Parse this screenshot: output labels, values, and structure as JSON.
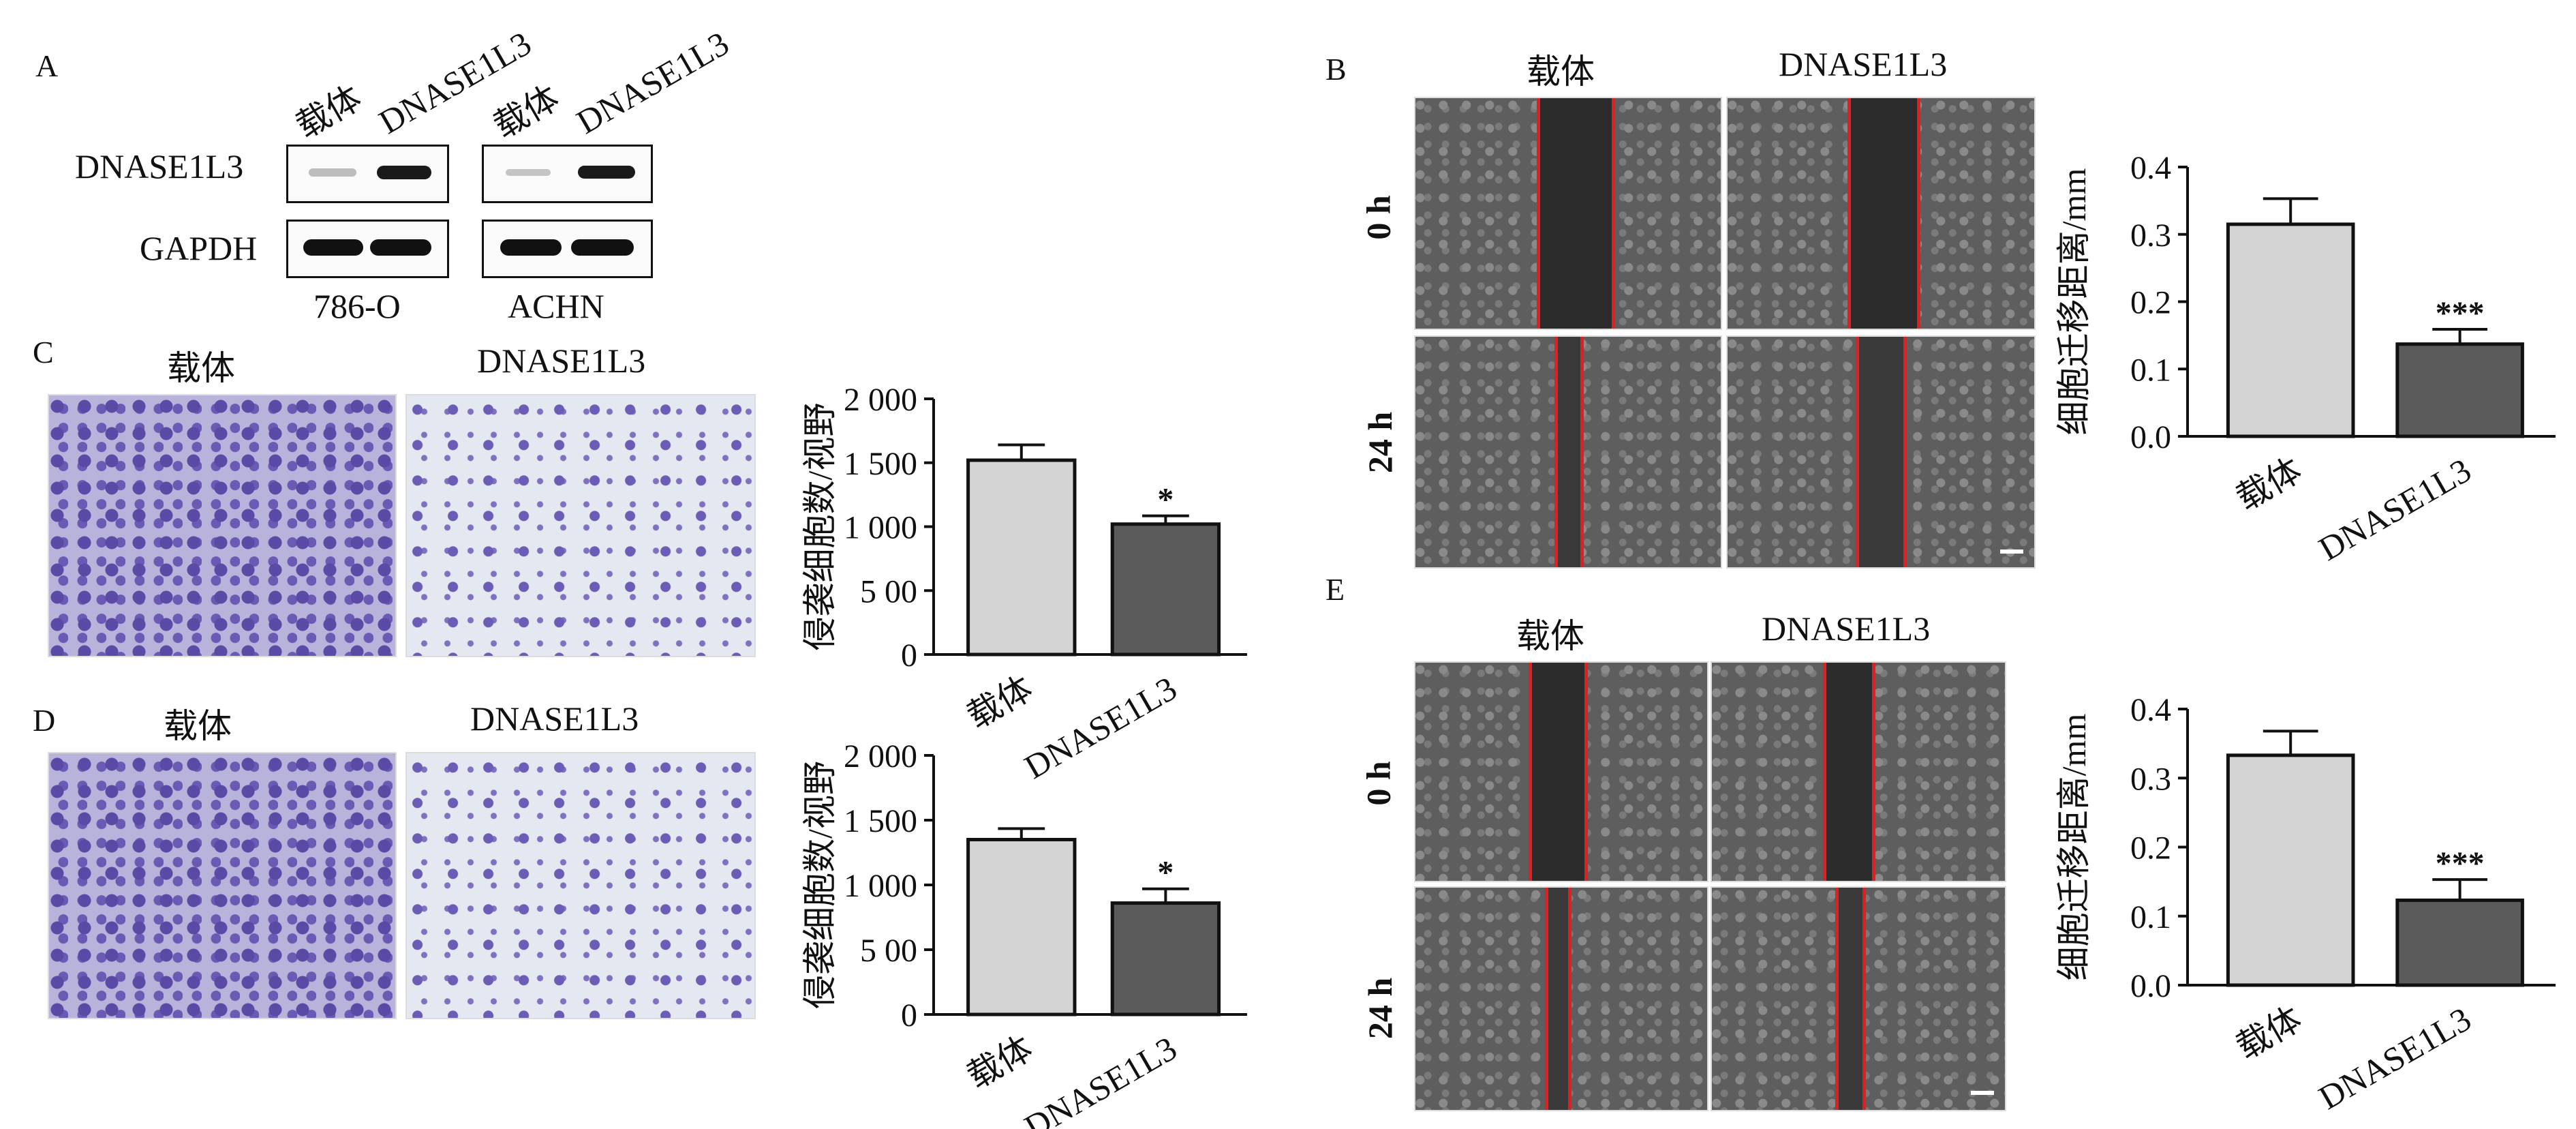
{
  "panels": {
    "A": {
      "label": "A",
      "lanes": [
        "载体",
        "DNASE1L3",
        "载体",
        "DNASE1L3"
      ],
      "rows": [
        "DNASE1L3",
        "GAPDH"
      ],
      "cell_lines": [
        "786-O",
        "ACHN"
      ]
    },
    "B": {
      "label": "B",
      "col_headers": [
        "载体",
        "DNASE1L3"
      ],
      "row_headers": [
        "0 h",
        "24 h"
      ]
    },
    "C": {
      "label": "C",
      "col_headers": [
        "载体",
        "DNASE1L3"
      ]
    },
    "D": {
      "label": "D",
      "col_headers": [
        "载体",
        "DNASE1L3"
      ]
    },
    "E": {
      "label": "E",
      "col_headers": [
        "载体",
        "DNASE1L3"
      ],
      "row_headers": [
        "0 h",
        "24 h"
      ]
    }
  },
  "chart_data": [
    {
      "id": "B",
      "type": "bar",
      "categories": [
        "载体",
        "DNASE1L3"
      ],
      "values": [
        0.315,
        0.137
      ],
      "errors": [
        0.038,
        0.022
      ],
      "ylabel": "细胞迁移距离/mm",
      "ylim": [
        0,
        0.4
      ],
      "yticks": [
        "0.0",
        "0.1",
        "0.2",
        "0.3",
        "0.4"
      ],
      "annotations": [
        "",
        "***"
      ]
    },
    {
      "id": "C",
      "type": "bar",
      "categories": [
        "载体",
        "DNASE1L3"
      ],
      "values": [
        1520,
        1020
      ],
      "errors": [
        120,
        65
      ],
      "ylabel": "侵袭细胞数/视野",
      "ylim": [
        0,
        2000
      ],
      "yticks": [
        "0",
        "5 00",
        "1 000",
        "1 500",
        "2 000"
      ],
      "annotations": [
        "",
        "*"
      ]
    },
    {
      "id": "D",
      "type": "bar",
      "categories": [
        "载体",
        "DNASE1L3"
      ],
      "values": [
        1350,
        860
      ],
      "errors": [
        85,
        110
      ],
      "ylabel": "侵袭细胞数/视野",
      "ylim": [
        0,
        2000
      ],
      "yticks": [
        "0",
        "5 00",
        "1 000",
        "1 500",
        "2 000"
      ],
      "annotations": [
        "",
        "*"
      ]
    },
    {
      "id": "E",
      "type": "bar",
      "categories": [
        "载体",
        "DNASE1L3"
      ],
      "values": [
        0.333,
        0.123
      ],
      "errors": [
        0.035,
        0.03
      ],
      "ylabel": "细胞迁移距离/mm",
      "ylim": [
        0,
        0.4
      ],
      "yticks": [
        "0.0",
        "0.1",
        "0.2",
        "0.3",
        "0.4"
      ],
      "annotations": [
        "",
        "***"
      ]
    }
  ],
  "colors": {
    "bar_control": "#d4d4d4",
    "bar_treated": "#5c5b5b",
    "scratch_line": "#e02020"
  }
}
